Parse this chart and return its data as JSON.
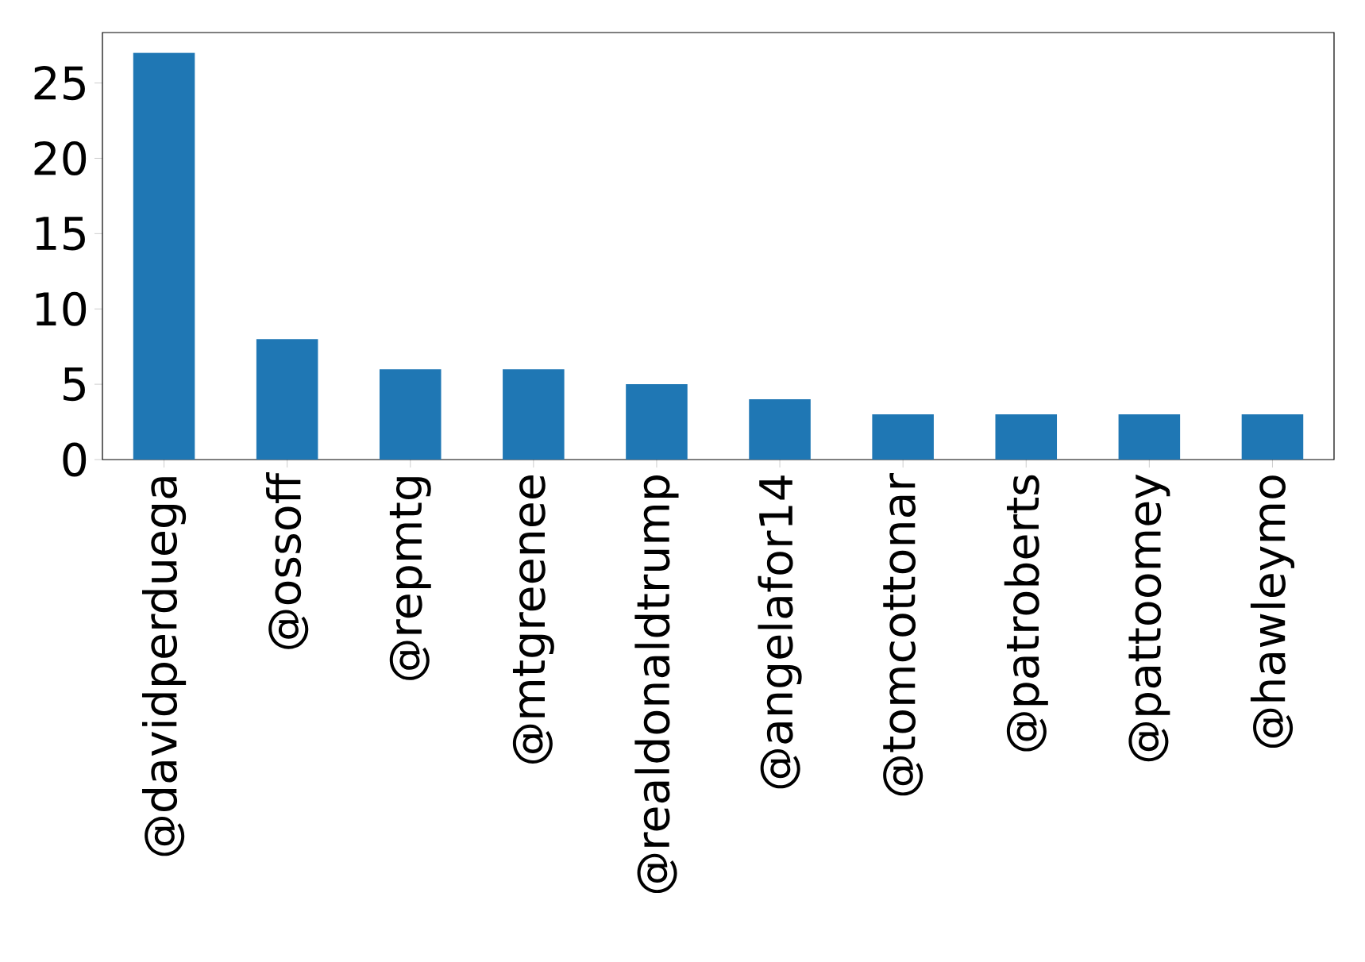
{
  "chart_data": {
    "type": "bar",
    "categories": [
      "@davidperduega",
      "@ossoff",
      "@repmtg",
      "@mtgreenee",
      "@realdonaldtrump",
      "@angelafor14",
      "@tomcottonar",
      "@patroberts",
      "@pattoomey",
      "@hawleymo"
    ],
    "values": [
      27,
      8,
      6,
      6,
      5,
      4,
      3,
      3,
      3,
      3
    ],
    "color": "#1f77b4",
    "ylim": [
      0,
      28.35
    ],
    "yticks": [
      0,
      5,
      10,
      15,
      20,
      25
    ]
  }
}
